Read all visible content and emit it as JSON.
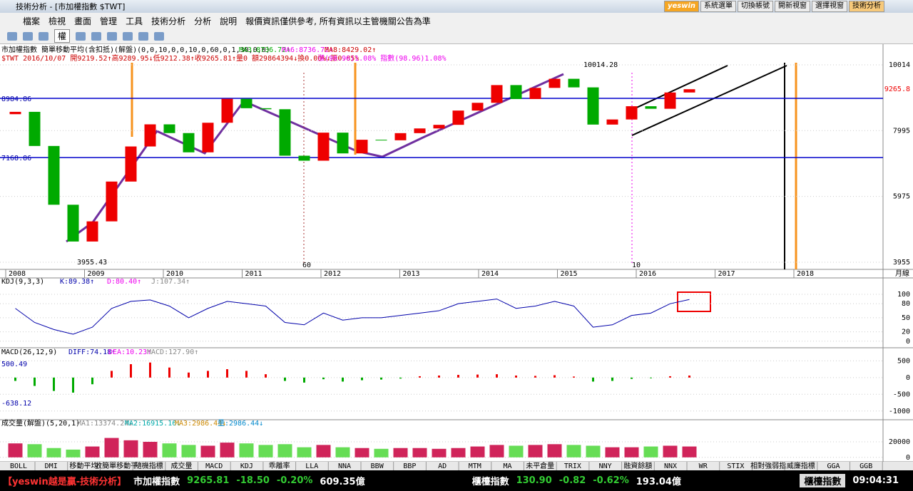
{
  "window": {
    "title": "技術分析 - [市加權指數 $TWT]",
    "buttons": [
      "yeswin",
      "系統選單",
      "切換帳號",
      "開新視窗",
      "選擇視窗",
      "技術分析"
    ]
  },
  "menu": {
    "items": [
      "檔案",
      "檢視",
      "畫面",
      "管理",
      "工具",
      "技術分析",
      "分析",
      "說明"
    ],
    "notice": "報價資訊僅供參考, 所有資訊以主管機關公告為準"
  },
  "toolbar": {
    "right_button": "權"
  },
  "info": {
    "line1": "市加權指數 簡單移動平均(含扣抵)(解盤)(0,0,10,0,0,10,0,60,0,1,30,0,0)",
    "ma3": "MA3:8736.72↑",
    "ma6": "MA6:8736.72↑",
    "ma8": "MA8:8429.02↑",
    "line2": "$TWT 2016/10/07 開9219.52↑高9289.95↓低9212.38↑收9265.81↑量0 額29864394↓換0.00%↓振0.85%",
    "change": "漲(98.96)1.08% 指數(98.96)1.08%"
  },
  "price_panel": {
    "ylim": [
      3736,
      10080
    ],
    "yticks": [
      3955,
      5975,
      7995,
      10014
    ],
    "current_label": "9265.8",
    "high_mark": 10014.28,
    "low_mark": 3955.43,
    "levels": [
      8984.86,
      7168.86
    ],
    "markers": [
      "60",
      "10"
    ],
    "years": [
      "2008",
      "2009",
      "2010",
      "2011",
      "2012",
      "2013",
      "2014",
      "2015",
      "2016",
      "2017",
      "2018"
    ],
    "period": "月線",
    "open": [
      8500,
      8572,
      7524,
      5720,
      4591,
      5210,
      6432,
      7509,
      8188,
      7920,
      7329,
      8237,
      8972,
      8683,
      8652,
      7225,
      7072,
      7933,
      7296,
      7715,
      7699,
      7918,
      8062,
      8173,
      8611,
      8849,
      9393,
      8966,
      9307,
      9586,
      9323,
      8181,
      8338,
      8744,
      8666,
      9166
    ],
    "close": [
      8572,
      7524,
      5720,
      4591,
      5210,
      6432,
      7509,
      8188,
      7920,
      7329,
      8237,
      8972,
      8683,
      8652,
      7225,
      7072,
      7933,
      7296,
      7715,
      7699,
      7918,
      8062,
      8173,
      8611,
      8849,
      9393,
      8966,
      9307,
      9586,
      9323,
      8181,
      8338,
      8744,
      8666,
      9166,
      9265.81
    ]
  },
  "kdj_panel": {
    "label": "KDJ(9,3,3)",
    "k": "K:89.38↑",
    "d": "D:80.40↑",
    "j": "J:107.34↑",
    "ylim": [
      -14,
      135
    ],
    "yticks": [
      0,
      20,
      50,
      80,
      100
    ],
    "values": [
      70,
      40,
      25,
      15,
      30,
      70,
      85,
      88,
      75,
      50,
      70,
      85,
      80,
      75,
      40,
      35,
      60,
      45,
      50,
      50,
      55,
      60,
      65,
      80,
      85,
      90,
      70,
      75,
      85,
      75,
      30,
      35,
      55,
      60,
      80,
      89
    ]
  },
  "macd_panel": {
    "label": "MACD(26,12,9)",
    "diff": "DIFF:74.18↑",
    "dea": "DEA:10.23↑",
    "macd": "MACD:127.90↑",
    "upper": "500.49",
    "lower": "-638.12",
    "ylim": [
      -1239,
      848
    ],
    "yticks": [
      -1000,
      -500,
      0,
      500
    ],
    "values": [
      -100,
      -250,
      -400,
      -450,
      -200,
      200,
      400,
      450,
      300,
      150,
      200,
      250,
      200,
      100,
      -100,
      -150,
      -50,
      -120,
      -80,
      -60,
      -30,
      40,
      60,
      80,
      90,
      100,
      60,
      50,
      70,
      30,
      -120,
      -100,
      -40,
      -20,
      40,
      60
    ]
  },
  "volume_panel": {
    "label": "成交量(解盤)(5,20,1)",
    "ma1": "MA1:13374.24↓",
    "ma2": "MA2:16915.16↓",
    "ma3": "MA3:2986.44↓",
    "vol": "量:2986.44↓",
    "ylim": [
      -5714,
      46667
    ],
    "yticks": [
      0,
      20000
    ],
    "values": [
      18000,
      17000,
      12000,
      10000,
      14000,
      25000,
      22000,
      20000,
      18000,
      16000,
      15000,
      19000,
      18000,
      16000,
      17000,
      13000,
      16000,
      13000,
      12000,
      11000,
      12000,
      12000,
      11000,
      12000,
      14000,
      16000,
      15000,
      16000,
      17000,
      16000,
      15000,
      13000,
      13000,
      14000,
      15000,
      14000
    ]
  },
  "tabs": [
    "BOLL",
    "DMI",
    "移動平均",
    "收簡單移動平",
    "隨機指標",
    "成交量",
    "MACD",
    "KDJ",
    "乖離率",
    "LLA",
    "NNA",
    "BBW",
    "BBP",
    "AD",
    "MTM",
    "MA",
    "未平倉量",
    "TRIX",
    "NNY",
    "融資餘額",
    "NNX",
    "WR",
    "STIX",
    "相對強弱指",
    "威廉指標",
    "GGA",
    "GGB"
  ],
  "status": {
    "brand": "【yeswin越是贏-技術分析】",
    "idx1": "市加權指數",
    "v1": "9265.81",
    "c1": "-18.50",
    "p1": "-0.20%",
    "a1": "609.35億",
    "idx2": "櫃檯指數",
    "v2": "130.90",
    "c2": "-0.82",
    "p2": "-0.62%",
    "a2": "193.04億",
    "button": "櫃檯指數",
    "time": "09:04:31"
  }
}
